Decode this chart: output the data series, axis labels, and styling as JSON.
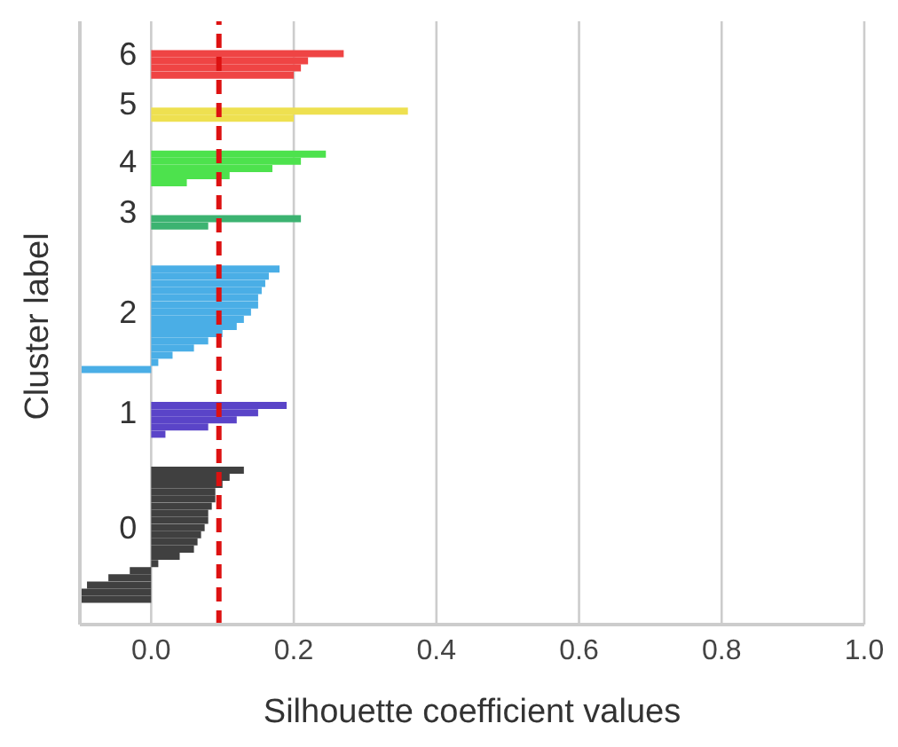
{
  "chart_data": {
    "type": "bar",
    "orientation": "horizontal",
    "xlabel": "Silhouette coefficient values",
    "ylabel": "Cluster label",
    "categories": [
      null,
      null,
      null,
      null,
      null,
      null,
      null,
      null,
      null,
      null,
      null,
      null,
      null,
      null,
      null,
      null,
      null,
      null,
      null,
      null,
      null,
      null,
      null,
      null,
      null,
      null,
      null,
      null,
      null,
      null,
      null,
      null,
      null,
      null,
      null,
      null,
      null,
      null,
      null,
      null,
      null,
      null,
      null,
      null,
      null,
      null,
      null,
      null,
      null,
      null,
      null,
      null,
      null,
      null,
      null,
      null,
      null,
      null,
      null,
      null,
      null,
      null,
      null,
      null,
      null,
      null,
      null,
      null,
      null,
      null,
      null,
      null,
      null,
      null,
      null,
      null,
      null,
      null,
      null,
      null,
      null,
      null,
      null,
      null
    ],
    "series": [
      {
        "name": "0",
        "color": "#404040",
        "values": [
          null,
          null,
          null,
          null,
          null,
          null,
          null,
          null,
          null,
          null,
          null,
          null,
          null,
          null,
          null,
          null,
          null,
          null,
          null,
          null,
          null,
          null,
          null,
          null,
          null,
          null,
          null,
          null,
          null,
          null,
          null,
          null,
          null,
          null,
          null,
          null,
          null,
          null,
          null,
          null,
          null,
          null,
          null,
          null,
          null,
          null,
          null,
          null,
          null,
          null,
          null,
          null,
          null,
          null,
          null,
          null,
          null,
          null,
          null,
          null,
          null,
          null,
          0.13,
          0.11,
          0.1,
          0.09,
          0.09,
          0.085,
          0.08,
          0.08,
          0.075,
          0.07,
          0.065,
          0.06,
          0.04,
          0.01,
          -0.03,
          -0.06,
          -0.09,
          -0.1,
          -0.1,
          null,
          null,
          null
        ]
      },
      {
        "name": "1",
        "color": "#5a44c8",
        "values": [
          null,
          null,
          null,
          null,
          null,
          null,
          null,
          null,
          null,
          null,
          null,
          null,
          null,
          null,
          null,
          null,
          null,
          null,
          null,
          null,
          null,
          null,
          null,
          null,
          null,
          null,
          null,
          null,
          null,
          null,
          null,
          null,
          null,
          null,
          null,
          null,
          null,
          null,
          null,
          null,
          null,
          null,
          null,
          null,
          null,
          null,
          null,
          null,
          null,
          null,
          null,
          null,
          null,
          0.19,
          0.15,
          0.12,
          0.08,
          0.02,
          null,
          null,
          null,
          null,
          null,
          null,
          null,
          null,
          null,
          null,
          null,
          null,
          null,
          null,
          null,
          null,
          null,
          null,
          null,
          null,
          null,
          null,
          null,
          null,
          null,
          null
        ]
      },
      {
        "name": "2",
        "color": "#4aaee6",
        "values": [
          null,
          null,
          null,
          null,
          null,
          null,
          null,
          null,
          null,
          null,
          null,
          null,
          null,
          null,
          null,
          null,
          null,
          null,
          null,
          null,
          null,
          null,
          null,
          null,
          null,
          null,
          null,
          null,
          null,
          null,
          null,
          null,
          null,
          null,
          0.18,
          0.165,
          0.16,
          0.155,
          0.15,
          0.15,
          0.14,
          0.13,
          0.12,
          0.1,
          0.08,
          0.06,
          0.03,
          0.01,
          -0.1,
          null,
          null,
          null,
          null,
          null,
          null,
          null,
          null,
          null,
          null,
          null,
          null,
          null,
          null,
          null,
          null,
          null,
          null,
          null,
          null,
          null,
          null,
          null,
          null,
          null,
          null,
          null,
          null,
          null,
          null,
          null,
          null,
          null,
          null,
          null
        ]
      },
      {
        "name": "3",
        "color": "#3cb371",
        "values": [
          null,
          null,
          null,
          null,
          null,
          null,
          null,
          null,
          null,
          null,
          null,
          null,
          null,
          null,
          null,
          null,
          null,
          null,
          null,
          null,
          null,
          null,
          null,
          null,
          null,
          null,
          null,
          0.21,
          0.08,
          null,
          null,
          null,
          null,
          null,
          null,
          null,
          null,
          null,
          null,
          null,
          null,
          null,
          null,
          null,
          null,
          null,
          null,
          null,
          null,
          null,
          null,
          null,
          null,
          null,
          null,
          null,
          null,
          null,
          null,
          null,
          null,
          null,
          null,
          null,
          null,
          null,
          null,
          null,
          null,
          null,
          null,
          null,
          null,
          null,
          null,
          null,
          null,
          null,
          null,
          null,
          null,
          null,
          null,
          null
        ]
      },
      {
        "name": "4",
        "color": "#4de24d",
        "values": [
          null,
          null,
          null,
          null,
          null,
          null,
          null,
          null,
          null,
          null,
          null,
          null,
          null,
          null,
          null,
          null,
          null,
          null,
          0.245,
          0.21,
          0.17,
          0.11,
          0.05,
          null,
          null,
          null,
          null,
          null,
          null,
          null,
          null,
          null,
          null,
          null,
          null,
          null,
          null,
          null,
          null,
          null,
          null,
          null,
          null,
          null,
          null,
          null,
          null,
          null,
          null,
          null,
          null,
          null,
          null,
          null,
          null,
          null,
          null,
          null,
          null,
          null,
          null,
          null,
          null,
          null,
          null,
          null,
          null,
          null,
          null,
          null,
          null,
          null,
          null,
          null,
          null,
          null,
          null,
          null,
          null,
          null,
          null,
          null,
          null,
          null
        ]
      },
      {
        "name": "5",
        "color": "#eee050",
        "values": [
          null,
          null,
          null,
          null,
          null,
          null,
          null,
          null,
          null,
          null,
          null,
          null,
          0.36,
          0.2,
          null,
          null,
          null,
          null,
          null,
          null,
          null,
          null,
          null,
          null,
          null,
          null,
          null,
          null,
          null,
          null,
          null,
          null,
          null,
          null,
          null,
          null,
          null,
          null,
          null,
          null,
          null,
          null,
          null,
          null,
          null,
          null,
          null,
          null,
          null,
          null,
          null,
          null,
          null,
          null,
          null,
          null,
          null,
          null,
          null,
          null,
          null,
          null,
          null,
          null,
          null,
          null,
          null,
          null,
          null,
          null,
          null,
          null,
          null,
          null,
          null,
          null,
          null,
          null,
          null,
          null,
          null,
          null,
          null,
          null
        ]
      },
      {
        "name": "6",
        "color": "#ef4444",
        "values": [
          null,
          null,
          null,
          null,
          0.27,
          0.22,
          0.21,
          0.2,
          null,
          null,
          null,
          null,
          null,
          null,
          null,
          null,
          null,
          null,
          null,
          null,
          null,
          null,
          null,
          null,
          null,
          null,
          null,
          null,
          null,
          null,
          null,
          null,
          null,
          null,
          null,
          null,
          null,
          null,
          null,
          null,
          null,
          null,
          null,
          null,
          null,
          null,
          null,
          null,
          null,
          null,
          null,
          null,
          null,
          null,
          null,
          null,
          null,
          null,
          null,
          null,
          null,
          null,
          null,
          null,
          null,
          null,
          null,
          null,
          null,
          null,
          null,
          null,
          null,
          null,
          null,
          null,
          null,
          null,
          null,
          null,
          null,
          null,
          null,
          null
        ]
      }
    ],
    "xlim": [
      -0.1,
      1
    ],
    "xticks": [
      {
        "value": 0,
        "label": "0.0"
      },
      {
        "value": 0.2,
        "label": "0.2"
      },
      {
        "value": 0.4,
        "label": "0.4"
      },
      {
        "value": 0.6,
        "label": "0.6"
      },
      {
        "value": 0.8,
        "label": "0.8"
      },
      {
        "value": 1,
        "label": "1.0"
      }
    ],
    "ref_lines": [
      {
        "axis": "x",
        "value": 0.095,
        "color": "#dd1111",
        "line_style": "dashed"
      }
    ],
    "grid": "x",
    "tick_labels": "x",
    "legend": false
  }
}
